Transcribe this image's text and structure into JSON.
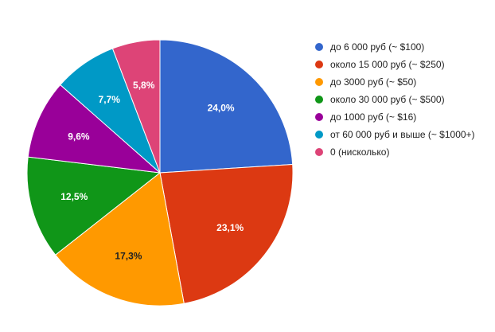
{
  "chart_data": {
    "type": "pie",
    "title": "",
    "slices": [
      {
        "label": "до 6 000 руб (~ $100)",
        "value": 24.0,
        "display": "24,0%",
        "color": "#3366cc",
        "label_color": "#ffffff"
      },
      {
        "label": "около 15 000 руб (~ $250)",
        "value": 23.1,
        "display": "23,1%",
        "color": "#dc3912",
        "label_color": "#ffffff"
      },
      {
        "label": "до 3000 руб (~ $50)",
        "value": 17.3,
        "display": "17,3%",
        "color": "#ff9900",
        "label_color": "#222222"
      },
      {
        "label": "около 30 000 руб (~ $500)",
        "value": 12.5,
        "display": "12,5%",
        "color": "#109618",
        "label_color": "#ffffff"
      },
      {
        "label": "до 1000 руб (~ $16)",
        "value": 9.6,
        "display": "9,6%",
        "color": "#990099",
        "label_color": "#ffffff"
      },
      {
        "label": "от 60 000 руб и выше (~ $1000+)",
        "value": 7.7,
        "display": "7,7%",
        "color": "#0099c6",
        "label_color": "#ffffff"
      },
      {
        "label": "0 (нисколько)",
        "value": 5.8,
        "display": "5,8%",
        "color": "#dd4477",
        "label_color": "#ffffff"
      }
    ],
    "legend_position": "right",
    "start_angle": "top, clockwise"
  }
}
